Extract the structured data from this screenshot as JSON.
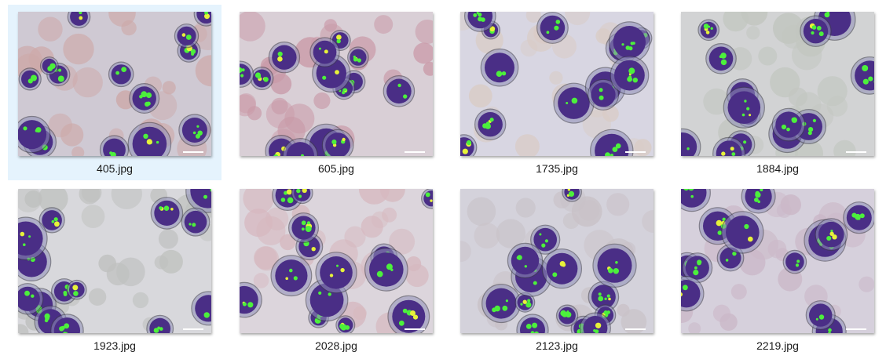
{
  "files": [
    {
      "name": "405.jpg",
      "selected": true,
      "bg": "#cfc9d3",
      "rbc": "#cda9a9",
      "icon": "blood-smear-thumbnail"
    },
    {
      "name": "605.jpg",
      "selected": false,
      "bg": "#d9cfd6",
      "rbc": "#c99aa8",
      "icon": "blood-smear-thumbnail"
    },
    {
      "name": "1735.jpg",
      "selected": false,
      "bg": "#d8d6e2",
      "rbc": "#d9ccc6",
      "icon": "blood-smear-thumbnail"
    },
    {
      "name": "1884.jpg",
      "selected": false,
      "bg": "#d2d3d4",
      "rbc": "#c2c6c0",
      "icon": "blood-smear-thumbnail"
    },
    {
      "name": "1923.jpg",
      "selected": false,
      "bg": "#d8d8dc",
      "rbc": "#bfc1bf",
      "icon": "blood-smear-thumbnail"
    },
    {
      "name": "2028.jpg",
      "selected": false,
      "bg": "#dcd5dc",
      "rbc": "#d6b8bf",
      "icon": "blood-smear-thumbnail"
    },
    {
      "name": "2123.jpg",
      "selected": false,
      "bg": "#d4d2db",
      "rbc": "#c9c2c8",
      "icon": "blood-smear-thumbnail"
    },
    {
      "name": "2219.jpg",
      "selected": false,
      "bg": "#d6d0dc",
      "rbc": "#cbb8c8",
      "icon": "blood-smear-thumbnail"
    }
  ]
}
